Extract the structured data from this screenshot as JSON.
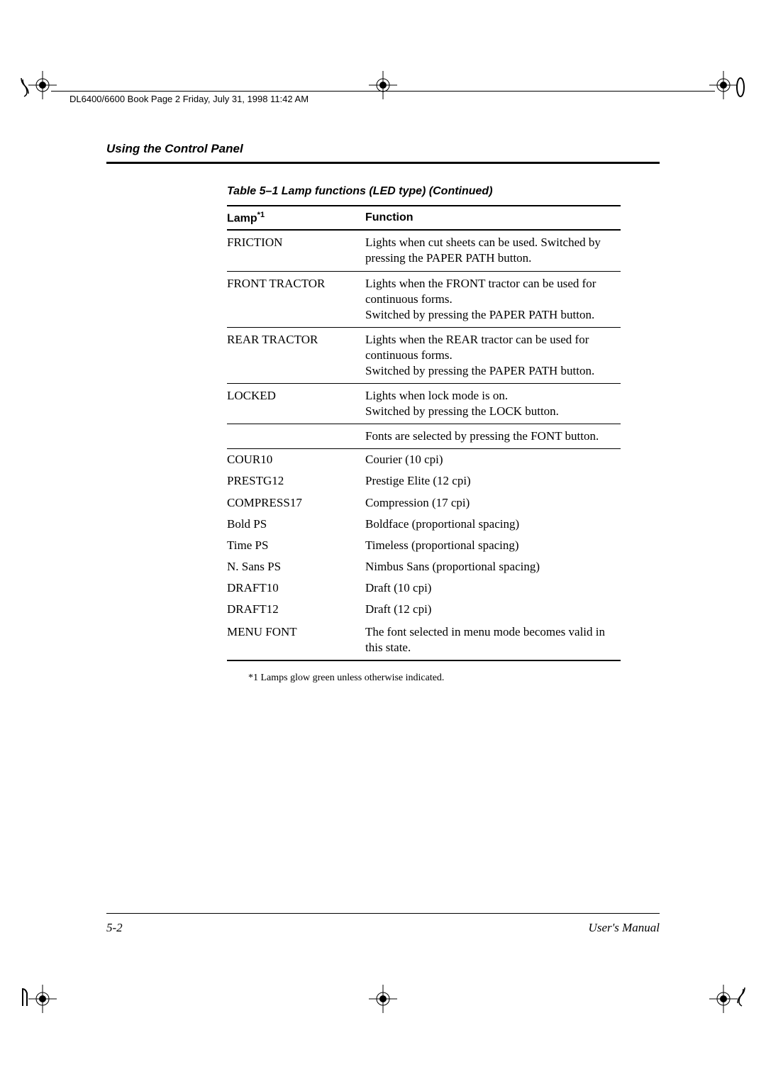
{
  "page_header": "DL6400/6600 Book  Page 2  Friday, July 31, 1998  11:42 AM",
  "section_title": "Using the Control Panel",
  "table": {
    "caption": "Table 5–1    Lamp functions (LED type) (Continued)",
    "headers": {
      "col1": "Lamp",
      "col1_sup": "*1",
      "col2": "Function"
    },
    "rows": [
      {
        "lamp": "FRICTION",
        "func": "Lights when cut sheets can be used. Switched by pressing the PAPER PATH button.",
        "border": true
      },
      {
        "lamp": "FRONT TRACTOR",
        "func": "Lights when the FRONT tractor can be used for continuous forms.\nSwitched by pressing the PAPER PATH button.",
        "border": true
      },
      {
        "lamp": "REAR TRACTOR",
        "func": "Lights when the REAR tractor can be used for continuous forms.\nSwitched by pressing the PAPER PATH button.",
        "border": true
      },
      {
        "lamp": "LOCKED",
        "func": "Lights when lock mode is on.\nSwitched by pressing the LOCK button.",
        "border": true
      },
      {
        "lamp": "",
        "func": "Fonts are selected by pressing the FONT button.",
        "border": true
      },
      {
        "lamp": "COUR10",
        "func": "Courier (10 cpi)",
        "border": false
      },
      {
        "lamp": "PRESTG12",
        "func": "Prestige Elite (12 cpi)",
        "border": false
      },
      {
        "lamp": "COMPRESS17",
        "func": "Compression (17 cpi)",
        "border": false
      },
      {
        "lamp": "Bold PS",
        "func": "Boldface (proportional spacing)",
        "border": false
      },
      {
        "lamp": "Time PS",
        "func": "Timeless (proportional spacing)",
        "border": false
      },
      {
        "lamp": "N. Sans PS",
        "func": "Nimbus Sans (proportional spacing)",
        "border": false
      },
      {
        "lamp": "DRAFT10",
        "func": "Draft (10 cpi)",
        "border": false
      },
      {
        "lamp": "DRAFT12",
        "func": "Draft (12 cpi)",
        "border": false
      },
      {
        "lamp": "MENU FONT",
        "func": "The font selected in menu mode becomes valid in this state.",
        "border": true,
        "last": true
      }
    ]
  },
  "footnote": "*1   Lamps glow green unless otherwise indicated.",
  "footer": {
    "left": "5-2",
    "right": "User's Manual"
  },
  "colors": {
    "text": "#000000",
    "background": "#ffffff",
    "rule": "#000000"
  }
}
